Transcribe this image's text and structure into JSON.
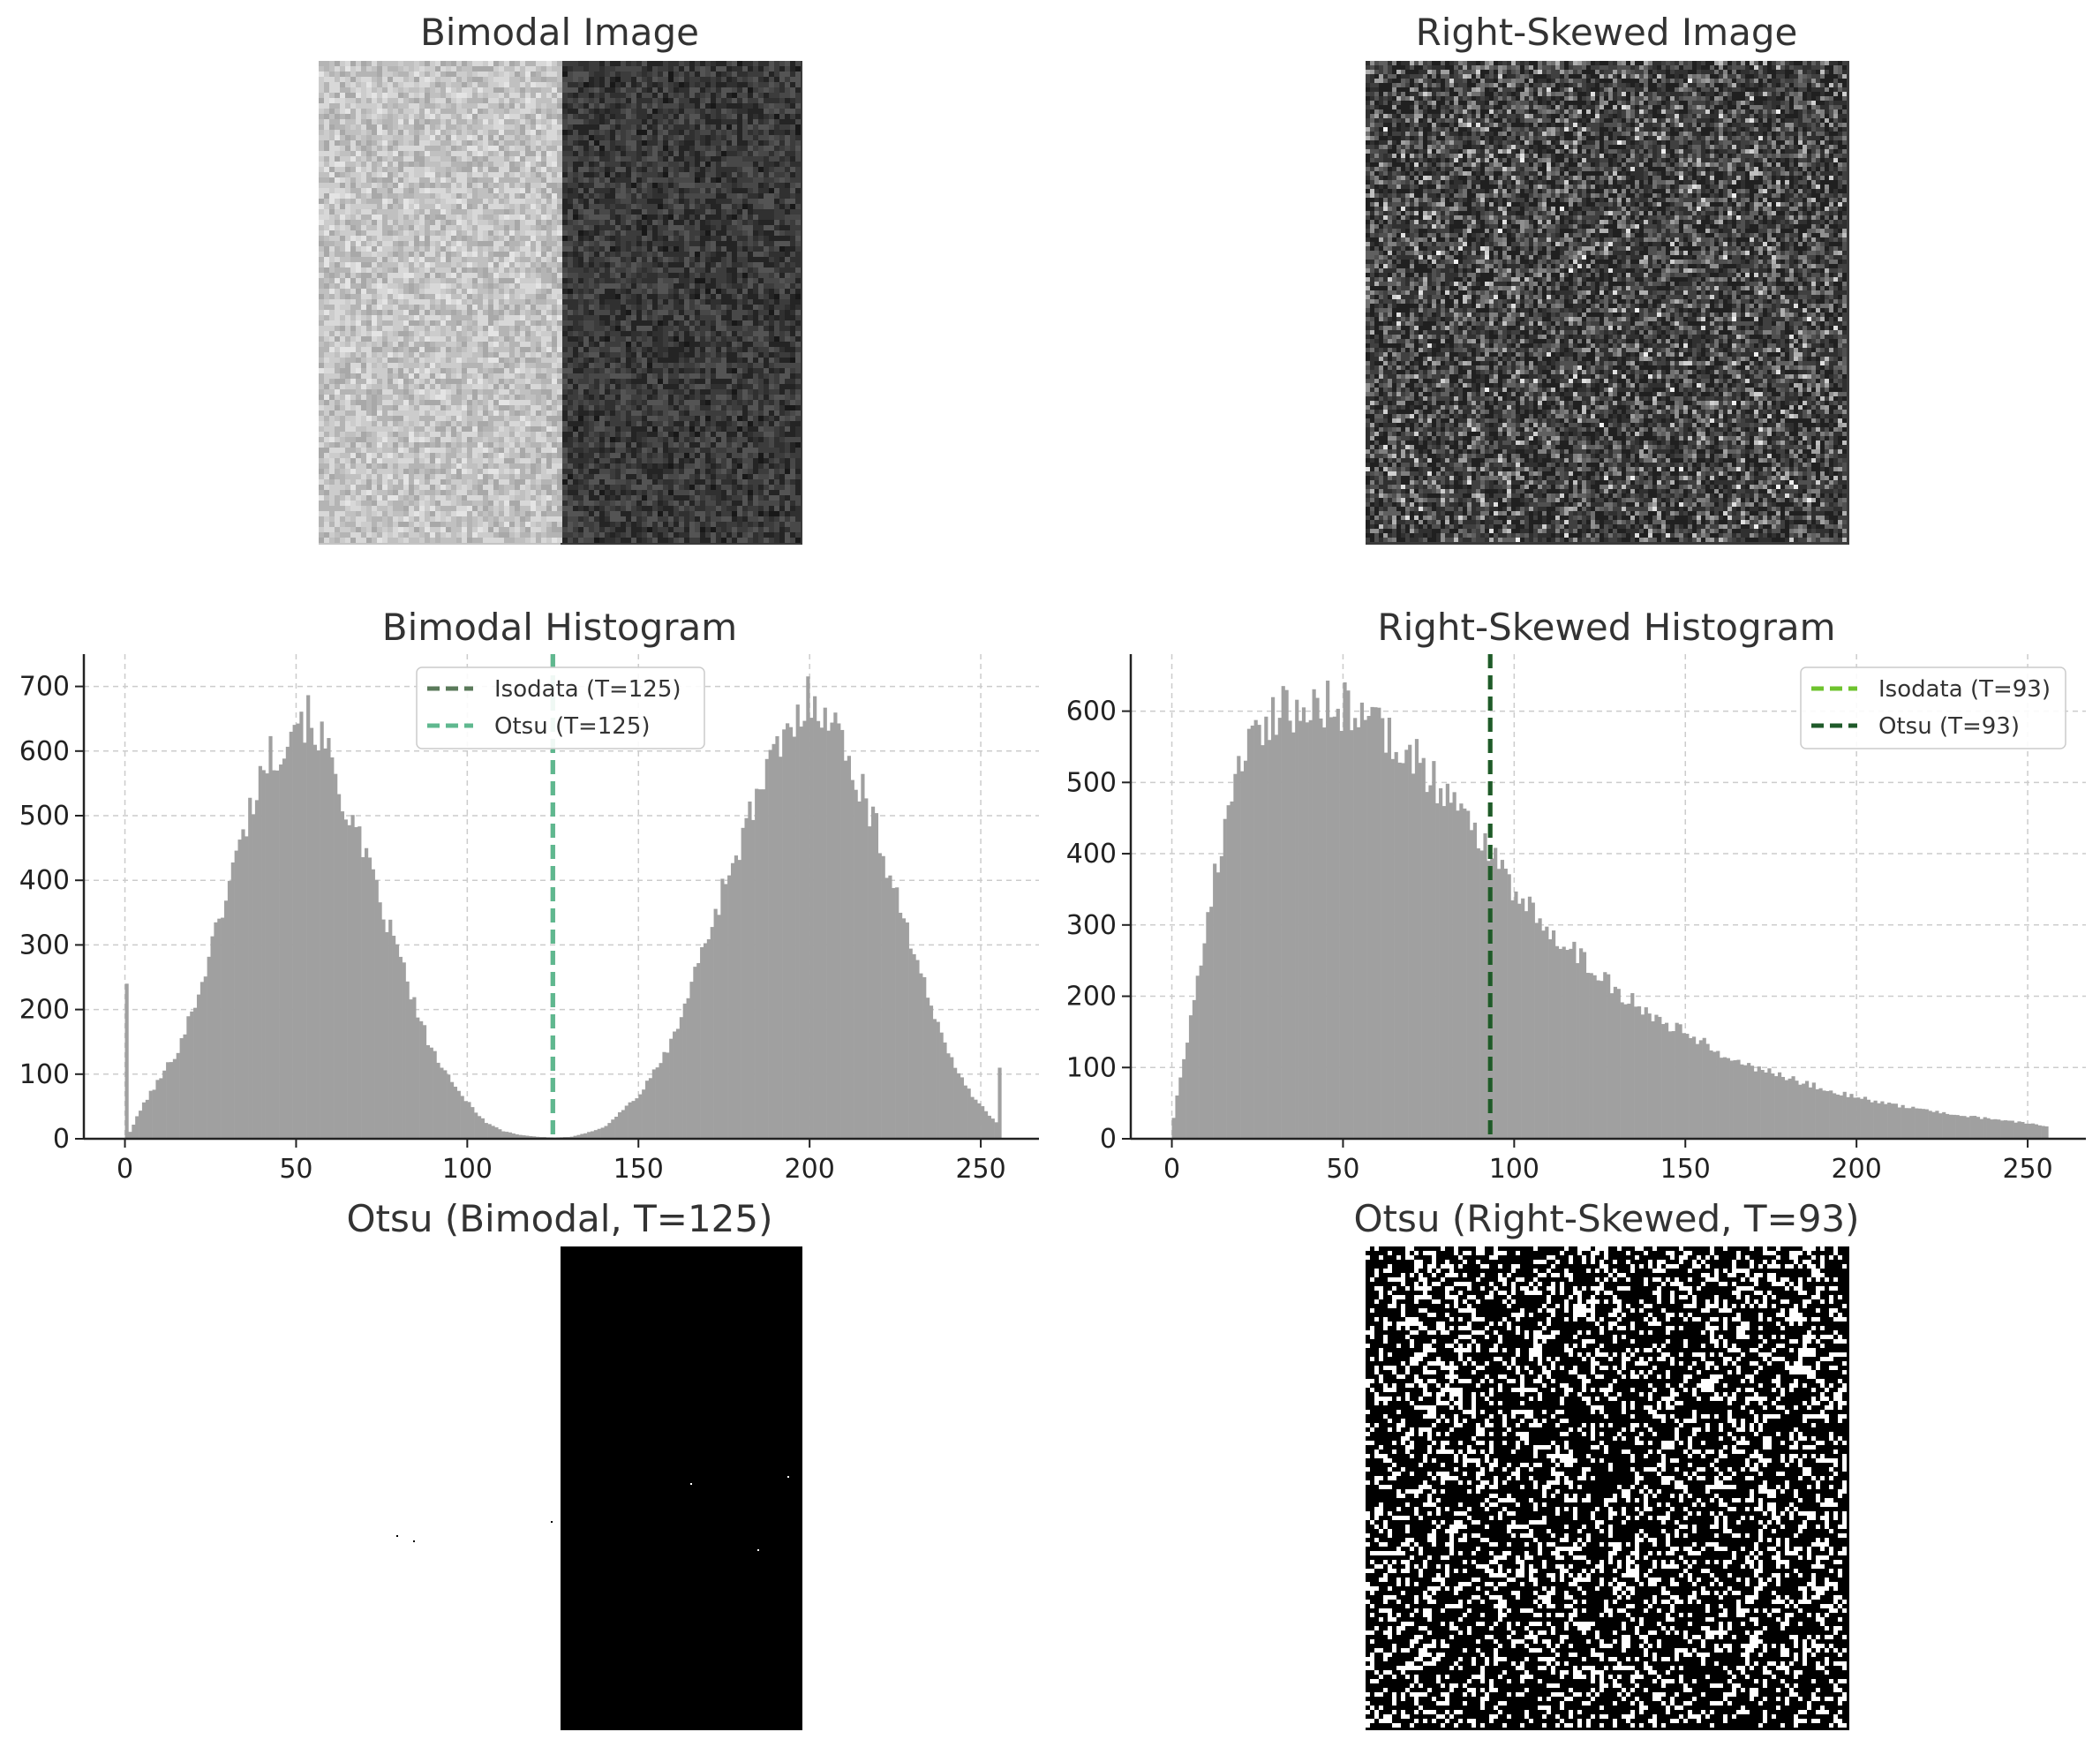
{
  "figure": {
    "panels": {
      "bimodal_image": {
        "title": "Bimodal Image",
        "left_gray": "#c4c4c4",
        "right_gray": "#3a3a3a"
      },
      "skewed_image": {
        "title": "Right-Skewed Image",
        "base_gray": "#3b3b3b"
      },
      "otsu_bimodal": {
        "title": "Otsu (Bimodal, T=125)",
        "foreground": "#ffffff",
        "background": "#000000"
      },
      "otsu_skewed": {
        "title": "Otsu (Right-Skewed, T=93)",
        "foreground": "#ffffff",
        "background": "#000000"
      }
    }
  },
  "chart_data": [
    {
      "type": "bar",
      "title": "Bimodal Histogram",
      "xlabel": "",
      "ylabel": "",
      "xlim": [
        -12,
        267
      ],
      "ylim": [
        0,
        750
      ],
      "xticks": [
        0,
        50,
        100,
        150,
        200,
        250
      ],
      "yticks": [
        0,
        100,
        200,
        300,
        400,
        500,
        600,
        700
      ],
      "grid": true,
      "bar_color": "#a0a0a0",
      "bins": 256,
      "bin_start": 0,
      "anchors": [
        [
          0,
          0
        ],
        [
          5,
          55
        ],
        [
          10,
          95
        ],
        [
          15,
          140
        ],
        [
          20,
          210
        ],
        [
          25,
          300
        ],
        [
          30,
          400
        ],
        [
          35,
          490
        ],
        [
          40,
          580
        ],
        [
          45,
          610
        ],
        [
          50,
          660
        ],
        [
          55,
          640
        ],
        [
          60,
          580
        ],
        [
          65,
          500
        ],
        [
          70,
          430
        ],
        [
          75,
          350
        ],
        [
          80,
          280
        ],
        [
          85,
          190
        ],
        [
          90,
          130
        ],
        [
          95,
          85
        ],
        [
          100,
          55
        ],
        [
          105,
          25
        ],
        [
          110,
          12
        ],
        [
          115,
          6
        ],
        [
          120,
          3
        ],
        [
          125,
          2
        ],
        [
          130,
          3
        ],
        [
          135,
          10
        ],
        [
          140,
          20
        ],
        [
          145,
          45
        ],
        [
          150,
          70
        ],
        [
          155,
          110
        ],
        [
          160,
          160
        ],
        [
          165,
          240
        ],
        [
          170,
          320
        ],
        [
          175,
          400
        ],
        [
          180,
          470
        ],
        [
          185,
          540
        ],
        [
          190,
          600
        ],
        [
          195,
          640
        ],
        [
          200,
          690
        ],
        [
          205,
          660
        ],
        [
          210,
          600
        ],
        [
          215,
          540
        ],
        [
          220,
          460
        ],
        [
          225,
          380
        ],
        [
          230,
          290
        ],
        [
          235,
          200
        ],
        [
          240,
          140
        ],
        [
          245,
          80
        ],
        [
          250,
          50
        ],
        [
          254,
          25
        ]
      ],
      "spikes": [
        [
          0,
          240
        ],
        [
          255,
          110
        ]
      ],
      "thresholds": [
        {
          "label": "Isodata (T=125)",
          "value": 125,
          "color": "#5a7a5a"
        },
        {
          "label": "Otsu (T=125)",
          "value": 125,
          "color": "#5fb88f"
        }
      ],
      "legend_position": "top-center"
    },
    {
      "type": "bar",
      "title": "Right-Skewed Histogram",
      "xlabel": "",
      "ylabel": "",
      "xlim": [
        -12,
        267
      ],
      "ylim": [
        0,
        680
      ],
      "xticks": [
        0,
        50,
        100,
        150,
        200,
        250
      ],
      "yticks": [
        0,
        100,
        200,
        300,
        400,
        500,
        600
      ],
      "grid": true,
      "bar_color": "#a0a0a0",
      "bins": 256,
      "bin_start": 0,
      "anchors": [
        [
          0,
          30
        ],
        [
          2,
          90
        ],
        [
          5,
          170
        ],
        [
          8,
          250
        ],
        [
          10,
          320
        ],
        [
          13,
          390
        ],
        [
          15,
          440
        ],
        [
          18,
          500
        ],
        [
          20,
          540
        ],
        [
          25,
          580
        ],
        [
          30,
          600
        ],
        [
          40,
          610
        ],
        [
          50,
          605
        ],
        [
          55,
          600
        ],
        [
          60,
          580
        ],
        [
          65,
          560
        ],
        [
          70,
          540
        ],
        [
          75,
          510
        ],
        [
          80,
          480
        ],
        [
          85,
          450
        ],
        [
          90,
          420
        ],
        [
          95,
          390
        ],
        [
          100,
          345
        ],
        [
          105,
          320
        ],
        [
          110,
          295
        ],
        [
          115,
          270
        ],
        [
          120,
          250
        ],
        [
          125,
          230
        ],
        [
          130,
          205
        ],
        [
          135,
          190
        ],
        [
          140,
          175
        ],
        [
          145,
          160
        ],
        [
          150,
          150
        ],
        [
          155,
          135
        ],
        [
          160,
          120
        ],
        [
          170,
          100
        ],
        [
          180,
          85
        ],
        [
          190,
          70
        ],
        [
          200,
          58
        ],
        [
          210,
          48
        ],
        [
          220,
          40
        ],
        [
          230,
          33
        ],
        [
          240,
          27
        ],
        [
          250,
          22
        ],
        [
          255,
          18
        ]
      ],
      "spikes": [],
      "thresholds": [
        {
          "label": "Isodata (T=93)",
          "value": 93,
          "color": "#6ec32e"
        },
        {
          "label": "Otsu (T=93)",
          "value": 93,
          "color": "#1f5a2a"
        }
      ],
      "legend_position": "top-right"
    }
  ]
}
